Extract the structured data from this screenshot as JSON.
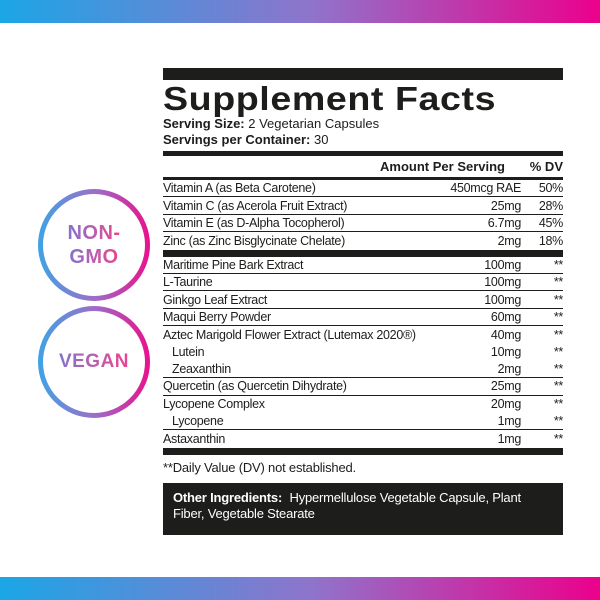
{
  "colors": {
    "gradient_from": "#1ba6e6",
    "gradient_mid": "#8f74cb",
    "gradient_to": "#ec008c",
    "ink": "#1d1d1b"
  },
  "badges": {
    "non_gmo": "NON-\nGMO",
    "vegan": "VEGAN"
  },
  "label": {
    "title": "Supplement Facts",
    "serving_size_label": "Serving Size:",
    "serving_size_value": "2 Vegetarian Capsules",
    "servings_per_container_label": "Servings per Container:",
    "servings_per_container_value": "30",
    "columns": {
      "amount": "Amount Per Serving",
      "dv": "% DV"
    },
    "sections": [
      {
        "rows": [
          {
            "name": "Vitamin A (as Beta Carotene)",
            "amount": "450mcg RAE",
            "dv": "50%",
            "indent": false,
            "divider": true
          },
          {
            "name": "Vitamin C (as Acerola Fruit Extract)",
            "amount": "25mg",
            "dv": "28%",
            "indent": false,
            "divider": true
          },
          {
            "name": "Vitamin E (as D-Alpha Tocopherol)",
            "amount": "6.7mg",
            "dv": "45%",
            "indent": false,
            "divider": true
          },
          {
            "name": "Zinc (as Zinc Bisglycinate Chelate)",
            "amount": "2mg",
            "dv": "18%",
            "indent": false,
            "divider": false
          }
        ]
      },
      {
        "rows": [
          {
            "name": "Maritime Pine Bark Extract",
            "amount": "100mg",
            "dv": "**",
            "indent": false,
            "divider": true
          },
          {
            "name": "L-Taurine",
            "amount": "100mg",
            "dv": "**",
            "indent": false,
            "divider": true
          },
          {
            "name": "Ginkgo Leaf Extract",
            "amount": "100mg",
            "dv": "**",
            "indent": false,
            "divider": true
          },
          {
            "name": "Maqui Berry Powder",
            "amount": "60mg",
            "dv": "**",
            "indent": false,
            "divider": true
          },
          {
            "name": "Aztec Marigold Flower Extract (Lutemax 2020®)",
            "amount": "40mg",
            "dv": "**",
            "indent": false,
            "divider": false
          },
          {
            "name": "Lutein",
            "amount": "10mg",
            "dv": "**",
            "indent": true,
            "divider": false
          },
          {
            "name": "Zeaxanthin",
            "amount": "2mg",
            "dv": "**",
            "indent": true,
            "divider": true
          },
          {
            "name": "Quercetin (as Quercetin Dihydrate)",
            "amount": "25mg",
            "dv": "**",
            "indent": false,
            "divider": true
          },
          {
            "name": "Lycopene Complex",
            "amount": "20mg",
            "dv": "**",
            "indent": false,
            "divider": false
          },
          {
            "name": "Lycopene",
            "amount": "1mg",
            "dv": "**",
            "indent": true,
            "divider": true
          },
          {
            "name": "Astaxanthin",
            "amount": "1mg",
            "dv": "**",
            "indent": false,
            "divider": false
          }
        ]
      }
    ],
    "footnote": "**Daily Value (DV) not established.",
    "other_ingredients": {
      "label": "Other Ingredients:",
      "value": "Hypermellulose Vegetable Capsule, Plant Fiber, Vegetable Stearate"
    }
  }
}
